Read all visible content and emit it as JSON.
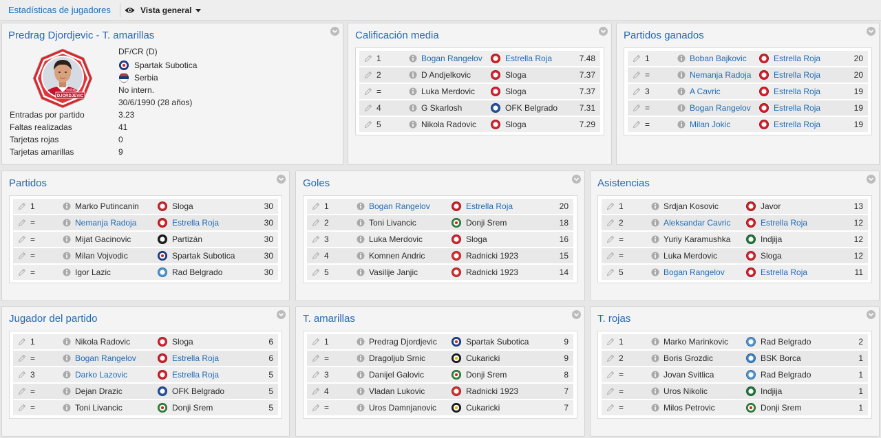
{
  "topbar": {
    "breadcrumb": "Estadísticas de jugadores",
    "view_label": "Vista general",
    "view_icon": "eye-icon"
  },
  "colors": {
    "link": "#1f6bb5",
    "title": "#2468b2",
    "text": "#2b2b2b"
  },
  "icons": {
    "row_action": "pencil-icon",
    "row_info": "info-icon",
    "panel_collapse": "chevron-down-icon"
  },
  "clubs": {
    "Estrella Roja": {
      "primary": "#d5202a",
      "secondary": "#ffffff"
    },
    "Sloga": {
      "primary": "#d32630",
      "secondary": "#ffffff"
    },
    "OFK Belgrado": {
      "primary": "#2552a4",
      "secondary": "#ffffff"
    },
    "Spartak Subotica": {
      "primary": "#1d3f8f",
      "secondary": "#ffffff",
      "accent": "#d42a2f"
    },
    "Partizán": {
      "primary": "#1e1e1e",
      "secondary": "#ffffff"
    },
    "Rad Belgrado": {
      "primary": "#4f97d4",
      "secondary": "#ffffff"
    },
    "Donji Srem": {
      "primary": "#2f8a3c",
      "secondary": "#ffffff",
      "accent": "#d42a2f"
    },
    "Radnicki 1923": {
      "primary": "#d82f30",
      "secondary": "#ffffff"
    },
    "Javor": {
      "primary": "#c9252b",
      "secondary": "#ffffff"
    },
    "Indjija": {
      "primary": "#217a3c",
      "secondary": "#ffffff"
    },
    "Cukaricki": {
      "primary": "#1b1b1b",
      "secondary": "#ffffff",
      "accent": "#e8b800"
    },
    "BSK Borca": {
      "primary": "#3d86c8",
      "secondary": "#ffffff"
    }
  },
  "player_card": {
    "title": "Predrag Djordjevic - T. amarillas",
    "photo_first_name": "Predrag",
    "photo_last_name": "DJORDJEVIC",
    "position": "DF/CR (D)",
    "club": "Spartak Subotica",
    "nation": "Serbia",
    "nation_flag": [
      "#c6363c",
      "#0c4076",
      "#ffffff"
    ],
    "international": "No intern.",
    "birth": "30/6/1990 (28 años)",
    "stats": [
      {
        "label": "Entradas por partido",
        "value": "3.23"
      },
      {
        "label": "Faltas realizadas",
        "value": "41"
      },
      {
        "label": "Tarjetas rojas",
        "value": "0"
      },
      {
        "label": "Tarjetas amarillas",
        "value": "9"
      }
    ]
  },
  "panels": [
    {
      "title": "Calificación media",
      "rows": [
        {
          "rank": "1",
          "player": "Bogan Rangelov",
          "club": "Estrella Roja",
          "value": "7.48",
          "highlight": true
        },
        {
          "rank": "2",
          "player": "D Andjelkovic",
          "club": "Sloga",
          "value": "7.37",
          "highlight": false
        },
        {
          "rank": "=",
          "player": "Luka Merdovic",
          "club": "Sloga",
          "value": "7.37",
          "highlight": false
        },
        {
          "rank": "4",
          "player": "G Skarlosh",
          "club": "OFK Belgrado",
          "value": "7.31",
          "highlight": false
        },
        {
          "rank": "5",
          "player": "Nikola Radovic",
          "club": "Sloga",
          "value": "7.29",
          "highlight": false
        }
      ]
    },
    {
      "title": "Partidos ganados",
      "rows": [
        {
          "rank": "1",
          "player": "Boban Bajkovic",
          "club": "Estrella Roja",
          "value": "20",
          "highlight": true
        },
        {
          "rank": "=",
          "player": "Nemanja Radoja",
          "club": "Estrella Roja",
          "value": "20",
          "highlight": true
        },
        {
          "rank": "3",
          "player": "A Cavric",
          "club": "Estrella Roja",
          "value": "19",
          "highlight": true
        },
        {
          "rank": "=",
          "player": "Bogan Rangelov",
          "club": "Estrella Roja",
          "value": "19",
          "highlight": true
        },
        {
          "rank": "=",
          "player": "Milan Jokic",
          "club": "Estrella Roja",
          "value": "19",
          "highlight": true
        }
      ]
    },
    {
      "title": "Partidos",
      "rows": [
        {
          "rank": "1",
          "player": "Marko Putincanin",
          "club": "Sloga",
          "value": "30",
          "highlight": false
        },
        {
          "rank": "=",
          "player": "Nemanja Radoja",
          "club": "Estrella Roja",
          "value": "30",
          "highlight": true
        },
        {
          "rank": "=",
          "player": "Mijat Gacinovic",
          "club": "Partizán",
          "value": "30",
          "highlight": false
        },
        {
          "rank": "=",
          "player": "Milan Vojvodic",
          "club": "Spartak Subotica",
          "value": "30",
          "highlight": false
        },
        {
          "rank": "=",
          "player": "Igor Lazic",
          "club": "Rad Belgrado",
          "value": "30",
          "highlight": false
        }
      ]
    },
    {
      "title": "Goles",
      "rows": [
        {
          "rank": "1",
          "player": "Bogan Rangelov",
          "club": "Estrella Roja",
          "value": "20",
          "highlight": true
        },
        {
          "rank": "2",
          "player": "Toni Livancic",
          "club": "Donji Srem",
          "value": "18",
          "highlight": false
        },
        {
          "rank": "3",
          "player": "Luka Merdovic",
          "club": "Sloga",
          "value": "16",
          "highlight": false
        },
        {
          "rank": "4",
          "player": "Komnen Andric",
          "club": "Radnicki 1923",
          "value": "15",
          "highlight": false
        },
        {
          "rank": "5",
          "player": "Vasilije Janjic",
          "club": "Radnicki 1923",
          "value": "14",
          "highlight": false
        }
      ]
    },
    {
      "title": "Asistencias",
      "rows": [
        {
          "rank": "1",
          "player": "Srdjan Kosovic",
          "club": "Javor",
          "value": "13",
          "highlight": false
        },
        {
          "rank": "2",
          "player": "Aleksandar Cavric",
          "club": "Estrella Roja",
          "value": "12",
          "highlight": true
        },
        {
          "rank": "=",
          "player": "Yuriy Karamushka",
          "club": "Indjija",
          "value": "12",
          "highlight": false
        },
        {
          "rank": "=",
          "player": "Luka Merdovic",
          "club": "Sloga",
          "value": "12",
          "highlight": false
        },
        {
          "rank": "5",
          "player": "Bogan Rangelov",
          "club": "Estrella Roja",
          "value": "11",
          "highlight": true
        }
      ]
    },
    {
      "title": "Jugador del partido",
      "rows": [
        {
          "rank": "1",
          "player": "Nikola Radovic",
          "club": "Sloga",
          "value": "6",
          "highlight": false
        },
        {
          "rank": "=",
          "player": "Bogan Rangelov",
          "club": "Estrella Roja",
          "value": "6",
          "highlight": true
        },
        {
          "rank": "3",
          "player": "Darko Lazovic",
          "club": "Estrella Roja",
          "value": "5",
          "highlight": true
        },
        {
          "rank": "=",
          "player": "Dejan Drazic",
          "club": "OFK Belgrado",
          "value": "5",
          "highlight": false
        },
        {
          "rank": "=",
          "player": "Toni Livancic",
          "club": "Donji Srem",
          "value": "5",
          "highlight": false
        }
      ]
    },
    {
      "title": "T. amarillas",
      "rows": [
        {
          "rank": "1",
          "player": "Predrag Djordjevic",
          "club": "Spartak Subotica",
          "value": "9",
          "highlight": false
        },
        {
          "rank": "=",
          "player": "Dragoljub Srnic",
          "club": "Cukaricki",
          "value": "9",
          "highlight": false
        },
        {
          "rank": "3",
          "player": "Danijel Galovic",
          "club": "Donji Srem",
          "value": "8",
          "highlight": false
        },
        {
          "rank": "4",
          "player": "Vladan Lukovic",
          "club": "Radnicki 1923",
          "value": "7",
          "highlight": false
        },
        {
          "rank": "=",
          "player": "Uros Damnjanovic",
          "club": "Cukaricki",
          "value": "7",
          "highlight": false
        }
      ]
    },
    {
      "title": "T. rojas",
      "rows": [
        {
          "rank": "1",
          "player": "Marko Marinkovic",
          "club": "Rad Belgrado",
          "value": "2",
          "highlight": false
        },
        {
          "rank": "2",
          "player": "Boris Grozdic",
          "club": "BSK Borca",
          "value": "1",
          "highlight": false
        },
        {
          "rank": "=",
          "player": "Jovan Svitlica",
          "club": "Rad Belgrado",
          "value": "1",
          "highlight": false
        },
        {
          "rank": "=",
          "player": "Uros Nikolic",
          "club": "Indjija",
          "value": "1",
          "highlight": false
        },
        {
          "rank": "=",
          "player": "Milos Petrovic",
          "club": "Donji Srem",
          "value": "1",
          "highlight": false
        }
      ]
    }
  ]
}
